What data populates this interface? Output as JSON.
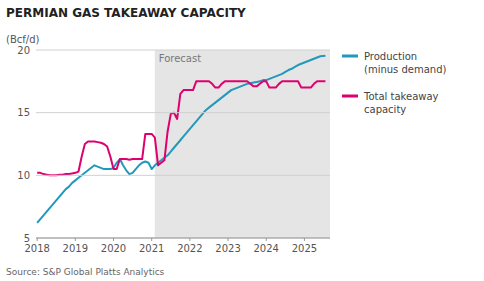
{
  "chart_data": {
    "type": "line",
    "title": "PERMIAN GAS TAKEAWAY CAPACITY",
    "ylabel": "(Bcf/d)",
    "source": "Source: S&P Global Platts Analytics",
    "annotations": [
      {
        "text": "Forecast",
        "x": 2021.08,
        "color": "#e5e5e5"
      }
    ],
    "x": [
      2018.0,
      2018.083,
      2018.167,
      2018.25,
      2018.333,
      2018.417,
      2018.5,
      2018.583,
      2018.667,
      2018.75,
      2018.833,
      2018.917,
      2019.0,
      2019.083,
      2019.167,
      2019.25,
      2019.333,
      2019.417,
      2019.5,
      2019.583,
      2019.667,
      2019.75,
      2019.833,
      2019.917,
      2020.0,
      2020.083,
      2020.167,
      2020.25,
      2020.333,
      2020.417,
      2020.5,
      2020.583,
      2020.667,
      2020.75,
      2020.833,
      2020.917,
      2021.0,
      2021.083,
      2021.167,
      2021.25,
      2021.333,
      2021.417,
      2021.5,
      2021.583,
      2021.667,
      2021.75,
      2021.833,
      2021.917,
      2022.0,
      2022.083,
      2022.167,
      2022.25,
      2022.333,
      2022.417,
      2022.5,
      2022.583,
      2022.667,
      2022.75,
      2022.833,
      2022.917,
      2023.0,
      2023.083,
      2023.167,
      2023.25,
      2023.333,
      2023.417,
      2023.5,
      2023.583,
      2023.667,
      2023.75,
      2023.833,
      2023.917,
      2024.0,
      2024.083,
      2024.167,
      2024.25,
      2024.333,
      2024.417,
      2024.5,
      2024.583,
      2024.667,
      2024.75,
      2024.833,
      2024.917,
      2025.0,
      2025.083,
      2025.167,
      2025.25,
      2025.333,
      2025.417,
      2025.55
    ],
    "series": [
      {
        "name": "Production\n(minus demand)",
        "color": "#2299bb",
        "values": [
          6.2,
          6.5,
          6.8,
          7.1,
          7.4,
          7.7,
          8.0,
          8.3,
          8.6,
          8.9,
          9.1,
          9.4,
          9.6,
          9.8,
          10.0,
          10.2,
          10.4,
          10.6,
          10.8,
          10.7,
          10.6,
          10.5,
          10.5,
          10.5,
          10.6,
          11.0,
          11.3,
          10.8,
          10.4,
          10.1,
          10.2,
          10.5,
          10.8,
          11.0,
          11.1,
          11.0,
          10.5,
          10.8,
          11.0,
          11.2,
          11.4,
          11.6,
          11.9,
          12.2,
          12.5,
          12.8,
          13.1,
          13.4,
          13.7,
          14.0,
          14.3,
          14.6,
          14.9,
          15.2,
          15.4,
          15.6,
          15.8,
          16.0,
          16.2,
          16.4,
          16.6,
          16.8,
          16.9,
          17.0,
          17.1,
          17.2,
          17.3,
          17.35,
          17.4,
          17.45,
          17.5,
          17.6,
          17.6,
          17.7,
          17.8,
          17.9,
          18.0,
          18.1,
          18.25,
          18.4,
          18.5,
          18.65,
          18.8,
          18.9,
          19.0,
          19.1,
          19.2,
          19.3,
          19.4,
          19.5,
          19.55
        ]
      },
      {
        "name": "Total takeaway\ncapacity",
        "color": "#dd006f",
        "values": [
          10.2,
          10.2,
          10.1,
          10.05,
          10.0,
          10.0,
          10.0,
          10.05,
          10.05,
          10.1,
          10.1,
          10.15,
          10.2,
          10.3,
          11.5,
          12.5,
          12.7,
          12.7,
          12.7,
          12.65,
          12.6,
          12.5,
          12.3,
          11.5,
          10.5,
          10.5,
          11.3,
          11.3,
          11.3,
          11.25,
          11.3,
          11.3,
          11.3,
          11.3,
          13.3,
          13.3,
          13.3,
          13.0,
          10.8,
          11.0,
          11.2,
          13.5,
          14.9,
          15.0,
          14.5,
          16.5,
          16.8,
          16.8,
          16.8,
          16.8,
          17.5,
          17.5,
          17.5,
          17.5,
          17.5,
          17.3,
          17.0,
          17.0,
          17.3,
          17.5,
          17.5,
          17.5,
          17.5,
          17.5,
          17.5,
          17.5,
          17.5,
          17.3,
          17.1,
          17.1,
          17.3,
          17.5,
          17.5,
          17.0,
          17.0,
          17.0,
          17.3,
          17.5,
          17.5,
          17.5,
          17.5,
          17.5,
          17.5,
          17.0,
          17.0,
          17.0,
          17.0,
          17.3,
          17.5,
          17.5,
          17.5
        ]
      }
    ],
    "xlim": [
      2017.97,
      2025.67
    ],
    "xticks": [
      2018,
      2019,
      2020,
      2021,
      2022,
      2023,
      2024,
      2025
    ],
    "ylim": [
      5,
      20
    ],
    "yticks": [
      5,
      10,
      15,
      20
    ],
    "grid": true
  }
}
